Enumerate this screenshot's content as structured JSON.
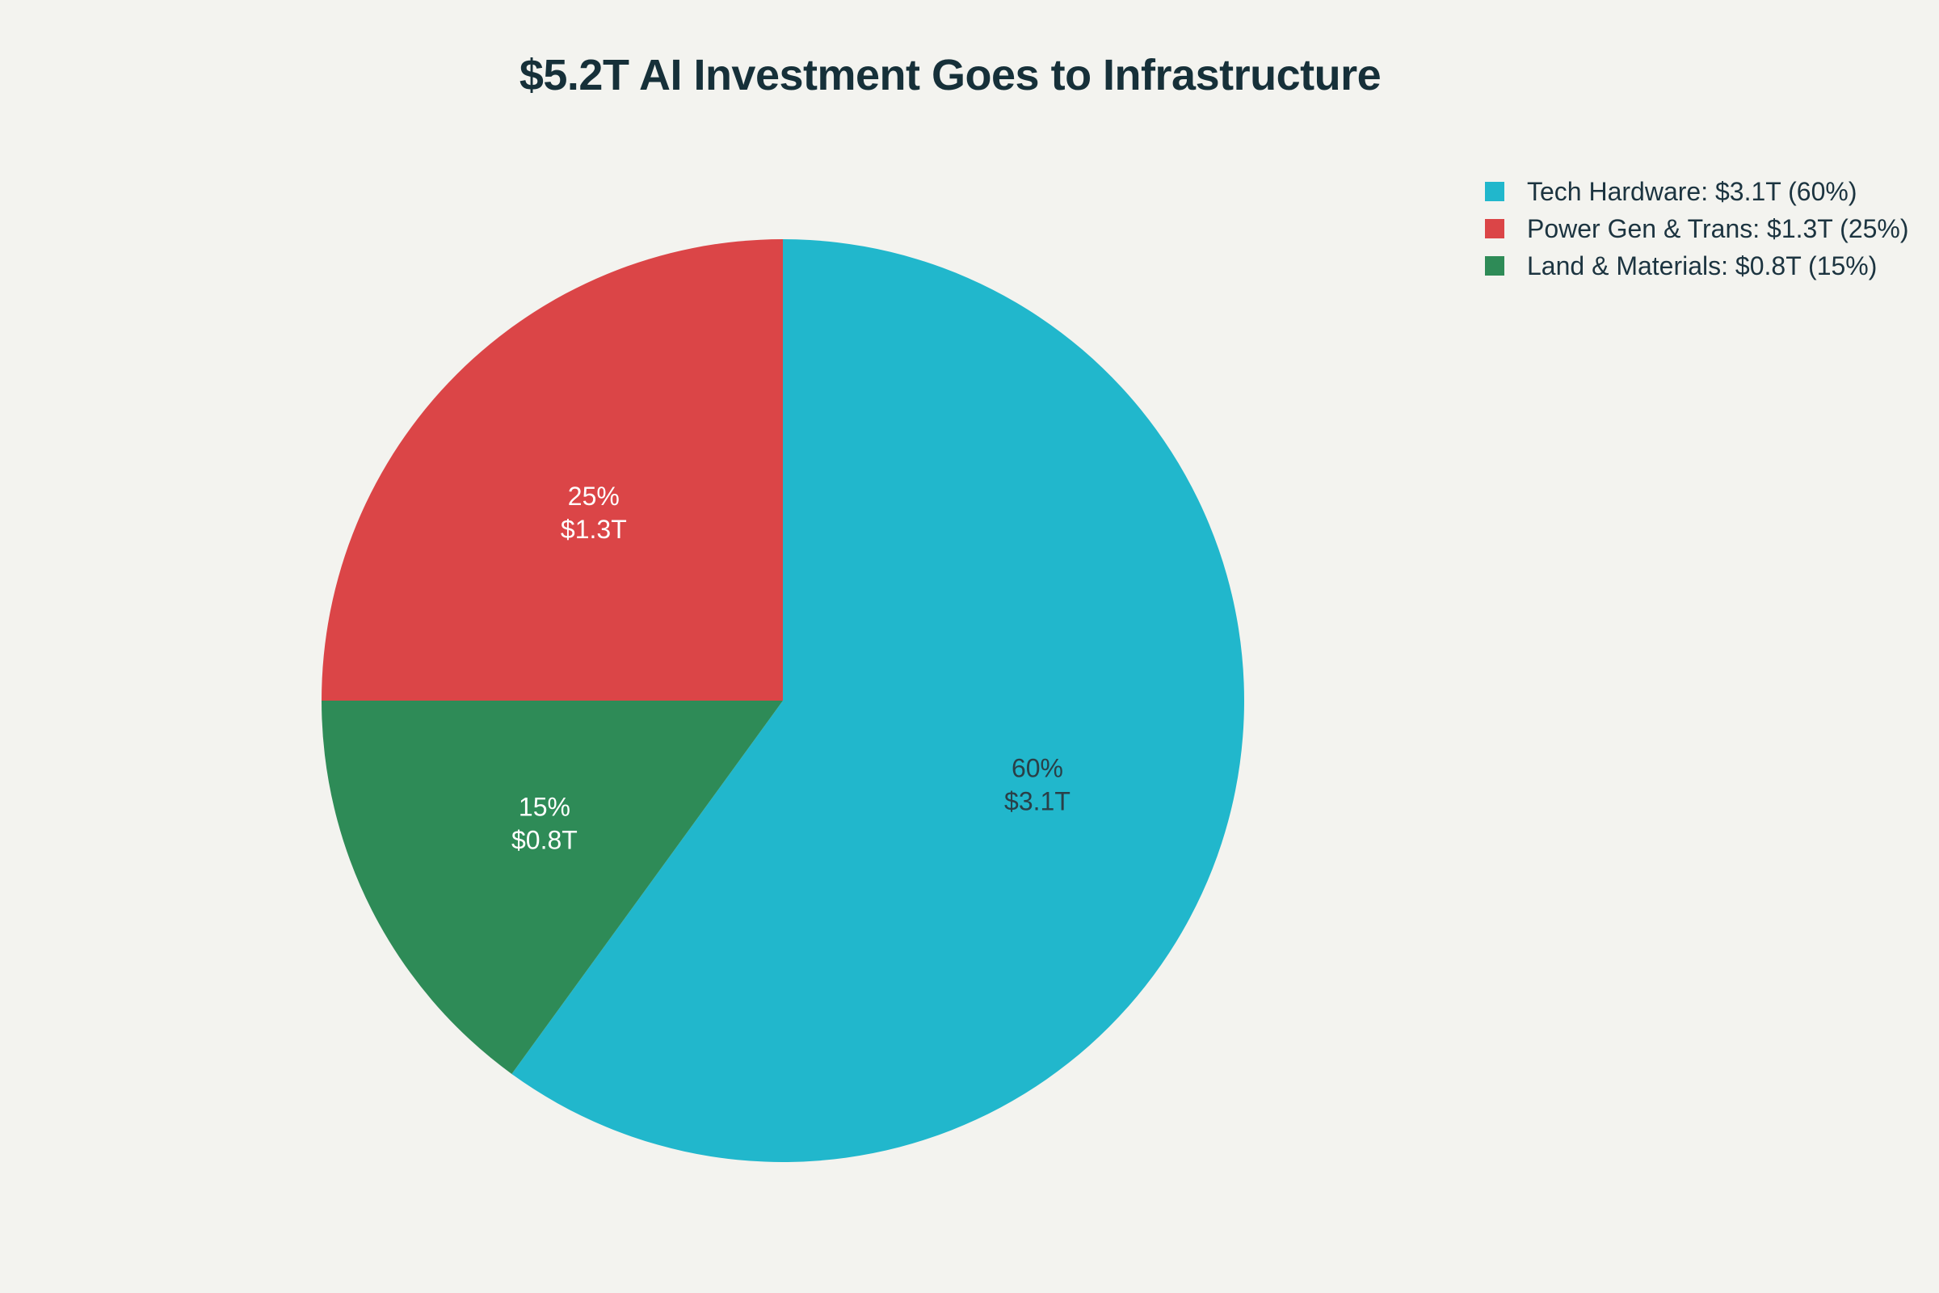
{
  "chart_data": {
    "type": "pie",
    "title": "$5.2T AI Investment Goes to Infrastructure",
    "slices": [
      {
        "name": "Tech Hardware",
        "value": 3.1,
        "percent": 60,
        "label_pct": "60%",
        "label_val": "$3.1T",
        "legend": "Tech Hardware: $3.1T (60%)",
        "color": "#21b7cc",
        "label_color": "#2a3f47"
      },
      {
        "name": "Land & Materials",
        "value": 0.8,
        "percent": 15,
        "label_pct": "15%",
        "label_val": "$0.8T",
        "legend": "Land & Materials: $0.8T (15%)",
        "color": "#2e8b57",
        "label_color": "#ffffff"
      },
      {
        "name": "Power Gen & Trans",
        "value": 1.3,
        "percent": 25,
        "label_pct": "25%",
        "label_val": "$1.3T",
        "legend": "Power Gen & Trans: $1.3T (25%)",
        "color": "#db4547",
        "label_color": "#ffffff"
      }
    ],
    "legend_order": [
      0,
      2,
      1
    ],
    "legend_position": "top-right",
    "start": "12 o'clock",
    "direction": "clockwise"
  }
}
